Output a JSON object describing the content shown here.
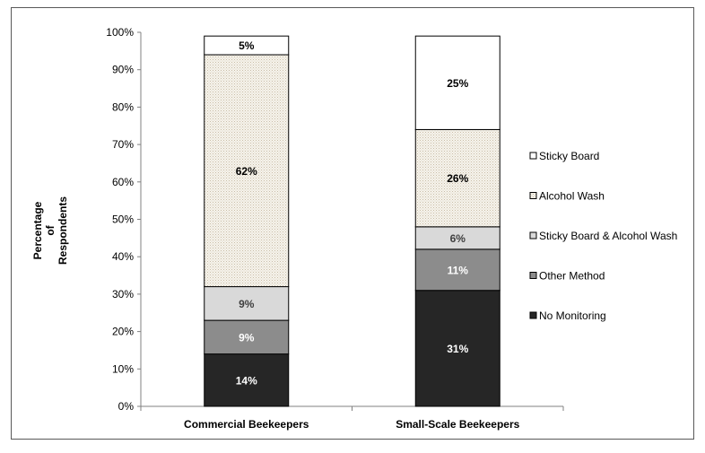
{
  "chart_data": {
    "type": "stacked-bar",
    "categories": [
      "Commercial Beekeepers",
      "Small-Scale Beekeepers"
    ],
    "series": [
      {
        "name": "No Monitoring",
        "values": [
          14,
          31
        ],
        "labels": [
          "14%",
          "31%"
        ],
        "color": "#262626",
        "label_color": "#ffffff"
      },
      {
        "name": "Other Method",
        "values": [
          9,
          11
        ],
        "labels": [
          "9%",
          "11%"
        ],
        "color": "#8c8c8c",
        "label_color": "#ffffff"
      },
      {
        "name": "Sticky Board & Alcohol Wash",
        "values": [
          9,
          6
        ],
        "labels": [
          "9%",
          "6%"
        ],
        "color": "#d9d9d9",
        "label_color": "#404040"
      },
      {
        "name": "Alcohol Wash",
        "values": [
          62,
          26
        ],
        "labels": [
          "62%",
          "26%"
        ],
        "color": "#f3efe6",
        "label_color": "#000000",
        "pattern": "dotted"
      },
      {
        "name": "Sticky Board",
        "values": [
          5,
          25
        ],
        "labels": [
          "5%",
          "25%"
        ],
        "color": "#ffffff",
        "label_color": "#000000"
      }
    ],
    "ylabel": "Percentage of Respondents",
    "ylabel_lines": [
      "Percentage",
      "of",
      "Respondents"
    ],
    "ylim": [
      0,
      100
    ],
    "yticks": [
      0,
      10,
      20,
      30,
      40,
      50,
      60,
      70,
      80,
      90,
      100
    ],
    "ytick_labels": [
      "0%",
      "10%",
      "20%",
      "30%",
      "40%",
      "50%",
      "60%",
      "70%",
      "80%",
      "90%",
      "100%"
    ],
    "legend": {
      "position": "right",
      "order": [
        "Sticky Board",
        "Alcohol Wash",
        "Sticky Board & Alcohol Wash",
        "Other Method",
        "No Monitoring"
      ]
    },
    "grid": false
  }
}
